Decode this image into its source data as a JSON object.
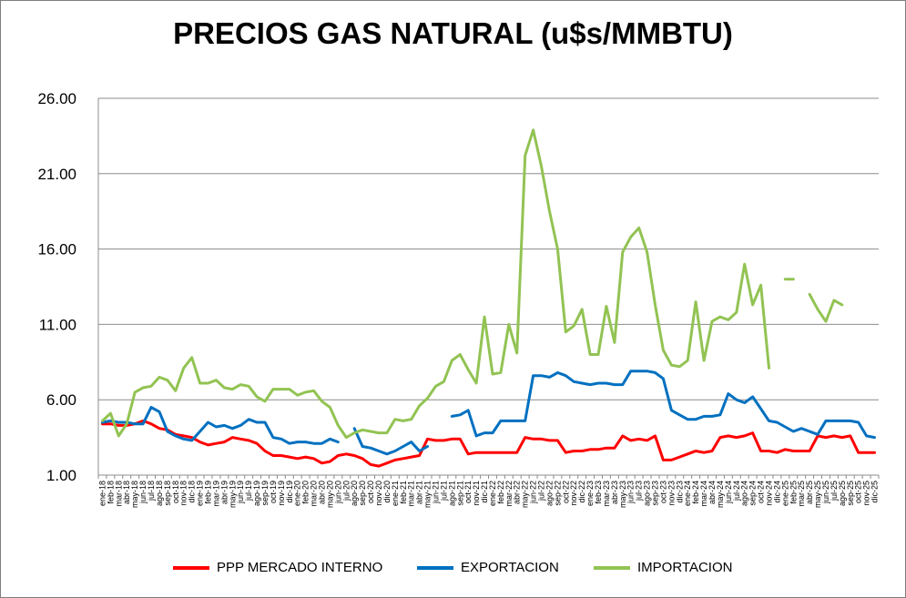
{
  "chart_data": {
    "type": "line",
    "title": "PRECIOS GAS NATURAL (u$s/MMBTU)",
    "xlabel": "",
    "ylabel": "",
    "ylim": [
      1,
      26
    ],
    "yticks": [
      "1.00",
      "6.00",
      "11.00",
      "16.00",
      "21.00",
      "26.00"
    ],
    "grid": true,
    "legend_position": "bottom",
    "x": [
      "ene-18",
      "feb-18",
      "mar-18",
      "abr-18",
      "may-18",
      "jun-18",
      "jul-18",
      "ago-18",
      "sep-18",
      "oct-18",
      "nov-18",
      "dic-18",
      "ene-19",
      "feb-19",
      "mar-19",
      "abr-19",
      "may-19",
      "jun-19",
      "jul-19",
      "ago-19",
      "sep-19",
      "oct-19",
      "nov-19",
      "dic-19",
      "ene-20",
      "feb-20",
      "mar-20",
      "abr-20",
      "may-20",
      "jun-20",
      "jul-20",
      "ago-20",
      "sep-20",
      "oct-20",
      "nov-20",
      "dic-20",
      "ene-21",
      "feb-21",
      "mar-21",
      "abr-21",
      "may-21",
      "jun-21",
      "jul-21",
      "ago-21",
      "sep-21",
      "oct-21",
      "nov-21",
      "dic-21",
      "ene-22",
      "feb-22",
      "mar-22",
      "abr-22",
      "may-22",
      "jun-22",
      "jul-22",
      "ago-22",
      "sep-22",
      "oct-22",
      "nov-22",
      "dic-22",
      "ene-23",
      "feb-23",
      "mar-23",
      "abr-23",
      "may-23",
      "jun-23",
      "jul-23",
      "ago-23",
      "sep-23",
      "oct-23",
      "nov-23",
      "dic-23",
      "ene-24",
      "feb-24",
      "mar-24",
      "abr-24",
      "may-24",
      "jun-24",
      "jul-24",
      "ago-24",
      "sep-24",
      "oct-24",
      "nov-24",
      "dic-24",
      "ene-25",
      "feb-25",
      "mar-25",
      "abr-25",
      "may-25",
      "jun-25",
      "jul-25",
      "ago-25",
      "sep-25",
      "oct-25",
      "nov-25",
      "dic-25"
    ],
    "series": [
      {
        "name": "PPP MERCADO INTERNO",
        "color": "#ff0000",
        "values": [
          4.4,
          4.4,
          4.3,
          4.3,
          4.4,
          4.6,
          4.4,
          4.1,
          4.0,
          3.7,
          3.6,
          3.5,
          3.2,
          3.0,
          3.1,
          3.2,
          3.5,
          3.4,
          3.3,
          3.1,
          2.6,
          2.3,
          2.3,
          2.2,
          2.1,
          2.2,
          2.1,
          1.8,
          1.9,
          2.3,
          2.4,
          2.3,
          2.1,
          1.7,
          1.6,
          1.8,
          2.0,
          2.1,
          2.2,
          2.3,
          3.4,
          3.3,
          3.3,
          3.4,
          3.4,
          2.4,
          2.5,
          2.5,
          2.5,
          2.5,
          2.5,
          2.5,
          3.5,
          3.4,
          3.4,
          3.3,
          3.3,
          2.5,
          2.6,
          2.6,
          2.7,
          2.7,
          2.8,
          2.8,
          3.6,
          3.3,
          3.4,
          3.3,
          3.6,
          2.0,
          2.0,
          2.2,
          2.4,
          2.6,
          2.5,
          2.6,
          3.5,
          3.6,
          3.5,
          3.6,
          3.8,
          2.6,
          2.6,
          2.5,
          2.7,
          2.6,
          2.6,
          2.6,
          3.6,
          3.5,
          3.6,
          3.5,
          3.6,
          2.5,
          2.5,
          2.5
        ]
      },
      {
        "name": "EXPORTACION",
        "color": "#0070c0",
        "values": [
          4.5,
          4.6,
          4.5,
          4.5,
          4.4,
          4.4,
          5.5,
          5.2,
          3.9,
          3.6,
          3.4,
          3.3,
          3.9,
          4.5,
          4.2,
          4.3,
          4.1,
          4.3,
          4.7,
          4.5,
          4.5,
          3.5,
          3.4,
          3.1,
          3.2,
          3.2,
          3.1,
          3.1,
          3.4,
          3.2,
          null,
          4.1,
          2.9,
          2.8,
          2.6,
          2.4,
          2.6,
          2.9,
          3.2,
          2.6,
          2.9,
          null,
          null,
          4.9,
          5.0,
          5.3,
          3.6,
          3.8,
          3.8,
          4.6,
          4.6,
          4.6,
          4.6,
          7.6,
          7.6,
          7.5,
          7.8,
          7.6,
          7.2,
          7.1,
          7.0,
          7.1,
          7.1,
          7.0,
          7.0,
          7.9,
          7.9,
          7.9,
          7.8,
          7.4,
          5.3,
          5.0,
          4.7,
          4.7,
          4.9,
          4.9,
          5.0,
          6.4,
          6.0,
          5.8,
          6.2,
          5.4,
          4.6,
          4.5,
          4.2,
          3.9,
          4.1,
          3.9,
          3.7,
          4.6,
          4.6,
          4.6,
          4.6,
          4.5,
          3.6,
          3.5
        ]
      },
      {
        "name": "IMPORTACION",
        "color": "#92c353",
        "values": [
          4.6,
          5.1,
          3.6,
          4.4,
          6.5,
          6.8,
          6.9,
          7.5,
          7.3,
          6.6,
          8.1,
          8.8,
          7.1,
          7.1,
          7.3,
          6.8,
          6.7,
          7.0,
          6.9,
          6.2,
          5.9,
          6.7,
          6.7,
          6.7,
          6.3,
          6.5,
          6.6,
          5.9,
          5.5,
          4.3,
          3.5,
          3.8,
          4.0,
          3.9,
          3.8,
          3.8,
          4.7,
          4.6,
          4.7,
          5.6,
          6.1,
          6.9,
          7.2,
          8.6,
          9.0,
          8.0,
          7.1,
          11.5,
          7.7,
          7.8,
          11.0,
          9.1,
          22.2,
          23.9,
          21.5,
          18.5,
          16.0,
          10.5,
          10.9,
          12.0,
          9.0,
          9.0,
          12.2,
          9.8,
          15.8,
          16.8,
          17.4,
          15.8,
          12.3,
          9.3,
          8.3,
          8.2,
          8.6,
          12.5,
          8.6,
          11.2,
          11.5,
          11.3,
          11.8,
          15.0,
          12.3,
          13.6,
          8.1,
          null,
          14.0,
          14.0,
          null,
          13.0,
          12.0,
          11.2,
          12.6,
          12.3,
          null,
          null,
          null,
          null
        ]
      }
    ]
  }
}
